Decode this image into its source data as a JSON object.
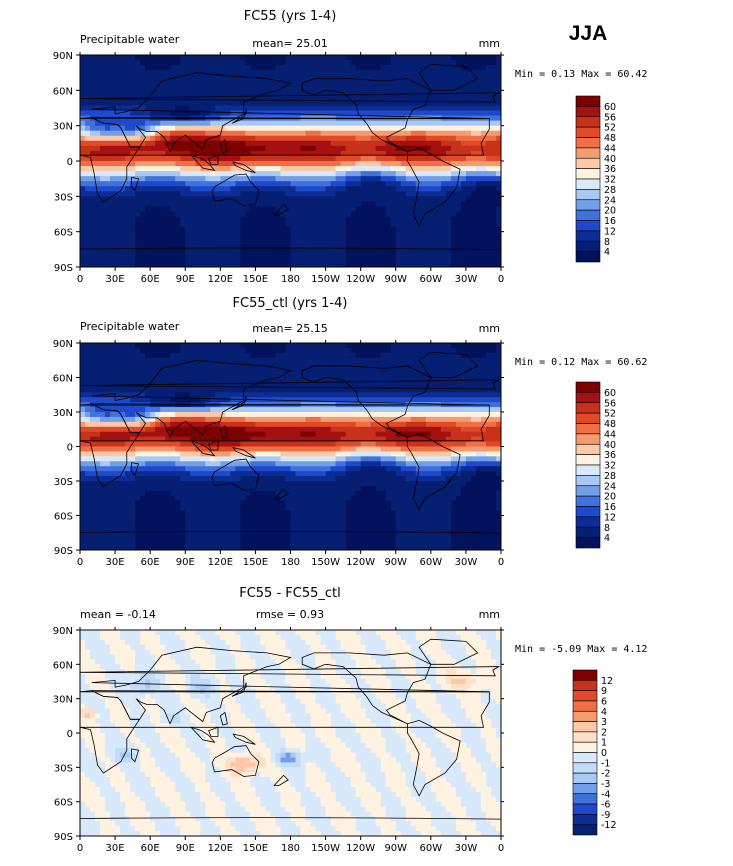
{
  "season": "JJA",
  "colors": {
    "positive_ramp": [
      "#fff2e0",
      "#fde0c8",
      "#fcc9a8",
      "#f9b08a",
      "#f69a70",
      "#f2865a",
      "#ef7047",
      "#ea5a36",
      "#e04a28",
      "#c8321a",
      "#a51010",
      "#7d0000"
    ],
    "negative_ramp": [
      "#d7e9fb",
      "#c2dcf8",
      "#a8c9f3",
      "#8db5ee",
      "#729fe8",
      "#5889e2",
      "#4072dd",
      "#2d5dd6",
      "#1f49cc",
      "#163bb3",
      "#0b2d94",
      "#061f72"
    ],
    "land_outline": "#000000"
  },
  "chart_data": [
    {
      "type": "heatmap",
      "title": "FC55 (yrs 1-4)",
      "left_label": "Precipitable water",
      "center_label": "mean=  25.01",
      "units": "mm",
      "stats": "Min =   0.13 Max =  60.42",
      "x_ticks": [
        "0",
        "30E",
        "60E",
        "90E",
        "120E",
        "150E",
        "180",
        "150W",
        "120W",
        "90W",
        "60W",
        "30W",
        "0"
      ],
      "y_ticks": [
        "90N",
        "60N",
        "30N",
        "0",
        "30S",
        "60S",
        "90S"
      ],
      "colorbar_levels": [
        "60",
        "56",
        "52",
        "48",
        "44",
        "40",
        "36",
        "32",
        "28",
        "24",
        "20",
        "16",
        "12",
        "8",
        "4"
      ],
      "colorbar_colors": [
        "#7d0000",
        "#a51010",
        "#c8321a",
        "#e04a28",
        "#ef7047",
        "#f69a70",
        "#fcc9a8",
        "#fff2e0",
        "#d7e9fb",
        "#a8c9f3",
        "#729fe8",
        "#4072dd",
        "#1f49cc",
        "#0b2d94",
        "#061f72",
        "#02125c"
      ],
      "field": "pw"
    },
    {
      "type": "heatmap",
      "title": "FC55_ctl (yrs 1-4)",
      "left_label": "Precipitable water",
      "center_label": "mean=  25.15",
      "units": "mm",
      "stats": "Min =   0.12 Max =  60.62",
      "x_ticks": [
        "0",
        "30E",
        "60E",
        "90E",
        "120E",
        "150E",
        "180",
        "150W",
        "120W",
        "90W",
        "60W",
        "30W",
        "0"
      ],
      "y_ticks": [
        "90N",
        "60N",
        "30N",
        "0",
        "30S",
        "60S",
        "90S"
      ],
      "colorbar_levels": [
        "60",
        "56",
        "52",
        "48",
        "44",
        "40",
        "36",
        "32",
        "28",
        "24",
        "20",
        "16",
        "12",
        "8",
        "4"
      ],
      "colorbar_colors": [
        "#7d0000",
        "#a51010",
        "#c8321a",
        "#e04a28",
        "#ef7047",
        "#f69a70",
        "#fcc9a8",
        "#fff2e0",
        "#d7e9fb",
        "#a8c9f3",
        "#729fe8",
        "#4072dd",
        "#1f49cc",
        "#0b2d94",
        "#061f72",
        "#02125c"
      ],
      "field": "pw"
    },
    {
      "type": "heatmap",
      "title": "FC55 - FC55_ctl",
      "left_label": "mean =  -0.14",
      "center_label": "rmse =    0.93",
      "units": "mm",
      "stats": "Min =  -5.09 Max =   4.12",
      "x_ticks": [
        "0",
        "30E",
        "60E",
        "90E",
        "120E",
        "150E",
        "180",
        "150W",
        "120W",
        "90W",
        "60W",
        "30W",
        "0"
      ],
      "y_ticks": [
        "90N",
        "60N",
        "30N",
        "0",
        "30S",
        "60S",
        "90S"
      ],
      "colorbar_levels": [
        "12",
        "9",
        "6",
        "4",
        "3",
        "2",
        "1",
        "0",
        "-1",
        "-2",
        "-3",
        "-4",
        "-6",
        "-9",
        "-12"
      ],
      "colorbar_colors": [
        "#7d0000",
        "#c8321a",
        "#e04a28",
        "#ef7047",
        "#f69a70",
        "#fcc9a8",
        "#fde0c8",
        "#fff2e0",
        "#d7e9fb",
        "#c2dcf8",
        "#a8c9f3",
        "#729fe8",
        "#4072dd",
        "#1f49cc",
        "#0b2d94",
        "#061f72"
      ],
      "field": "diff"
    }
  ]
}
